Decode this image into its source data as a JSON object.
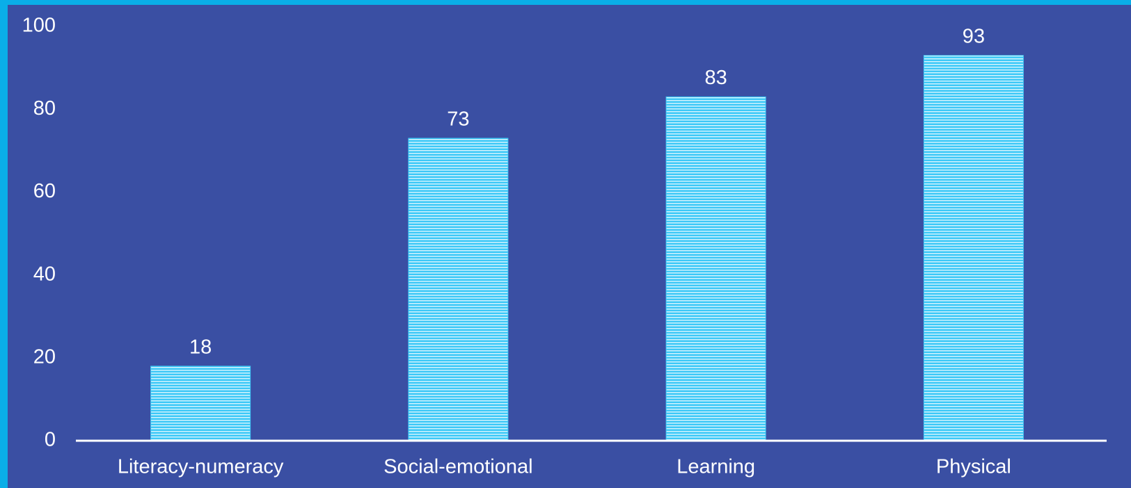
{
  "chart_data": {
    "type": "bar",
    "categories": [
      "Literacy-numeracy",
      "Social-emotional",
      "Learning",
      "Physical"
    ],
    "values": [
      18,
      73,
      83,
      93
    ],
    "color": "#3fc9f7",
    "ylim": [
      0,
      100
    ],
    "yticks": [
      0,
      20,
      40,
      60,
      80,
      100
    ],
    "grid": false,
    "value_labels_shown": true
  }
}
